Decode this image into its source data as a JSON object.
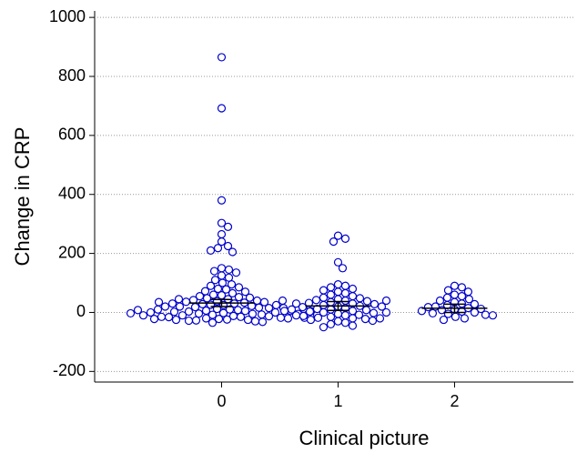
{
  "chart_data": {
    "type": "dotplot",
    "x_label": "Clinical picture",
    "y_label": "Change in CRP",
    "xlim": [
      -1.09,
      3.02
    ],
    "xticks": [
      0,
      1,
      2
    ],
    "ylim": [
      -236,
      1022
    ],
    "yticks": [
      -200,
      0,
      200,
      400,
      600,
      800,
      1000
    ],
    "grid": true,
    "color": "#0000cc",
    "series": [
      {
        "name": "0",
        "x": 0,
        "values": [
          865,
          692,
          380,
          303,
          290,
          265,
          240,
          225,
          218,
          210,
          205,
          150,
          145,
          140,
          135,
          125,
          118,
          110,
          100,
          95,
          90,
          85,
          80,
          78,
          72,
          70,
          65,
          60,
          58,
          55,
          52,
          50,
          48,
          45,
          42,
          40,
          38,
          36,
          35,
          33,
          30,
          28,
          26,
          25,
          22,
          20,
          18,
          16,
          15,
          12,
          10,
          8,
          6,
          5,
          3,
          2,
          0,
          -2,
          -4,
          -5,
          -7,
          -8,
          -10,
          -12,
          -13,
          -15,
          -16,
          -18,
          -20,
          -22,
          -24,
          -25,
          -27,
          -28,
          -30,
          -32,
          -35,
          30,
          25,
          20,
          15,
          10,
          5,
          0,
          -5,
          -10,
          -15,
          -20,
          -25,
          45,
          40,
          35,
          12,
          8,
          4,
          -3,
          -8,
          -18,
          -22
        ],
        "mean": 32,
        "error": 12
      },
      {
        "name": "1",
        "x": 1,
        "values": [
          260,
          250,
          240,
          170,
          150,
          95,
          90,
          85,
          80,
          75,
          70,
          65,
          60,
          55,
          50,
          48,
          45,
          42,
          40,
          38,
          35,
          32,
          30,
          28,
          25,
          22,
          20,
          18,
          15,
          12,
          10,
          8,
          5,
          3,
          0,
          -2,
          -5,
          -8,
          -10,
          -12,
          -15,
          -18,
          -20,
          -22,
          -25,
          -28,
          -30,
          -35,
          -40,
          -45,
          -50,
          30,
          20,
          10,
          0,
          -10,
          -20,
          40,
          5
        ],
        "mean": 22,
        "error": 15
      },
      {
        "name": "2",
        "x": 2,
        "values": [
          90,
          85,
          75,
          70,
          60,
          55,
          50,
          45,
          40,
          35,
          30,
          28,
          25,
          20,
          18,
          15,
          12,
          10,
          8,
          5,
          3,
          0,
          -3,
          -5,
          -8,
          -10,
          -15,
          -20,
          -25
        ],
        "mean": 14,
        "error": 14
      }
    ]
  }
}
